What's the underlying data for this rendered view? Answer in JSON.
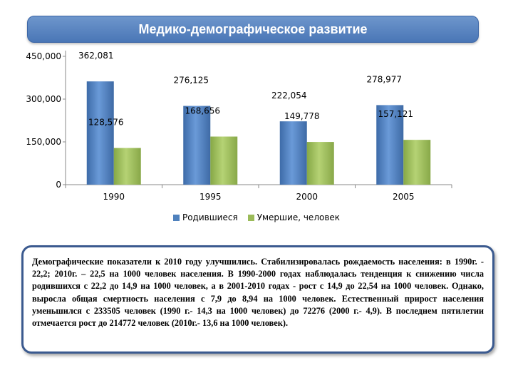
{
  "title": "Медико-демографическое развитие",
  "chart_data": {
    "type": "bar",
    "categories": [
      "1990",
      "1995",
      "2000",
      "2005"
    ],
    "series": [
      {
        "name": "Родившиеся",
        "values": [
          362081,
          276125,
          222054,
          278977
        ],
        "labels": [
          "362,081",
          "276,125",
          "222,054",
          "278,977"
        ],
        "color": "#4f81bd"
      },
      {
        "name": "Умершие, человек",
        "values": [
          128576,
          168656,
          149778,
          157121
        ],
        "labels": [
          "128,576",
          "168,656",
          "149,778",
          "157,121"
        ],
        "color": "#9bbb59"
      }
    ],
    "y_ticks": [
      "0",
      "150,000",
      "300,000",
      "450,000"
    ],
    "y_tick_values": [
      0,
      150000,
      300000,
      450000
    ],
    "ylim": [
      0,
      450000
    ],
    "legend_position": "bottom",
    "grid": false
  },
  "note": "Демографические показатели к 2010 году улучшились. Стабилизировалась рождаемость населения: в 1990г. - 22,2; 2010г. – 22,5 на 1000 человек населения. В 1990-2000 годах наблюдалась тенденция к снижению числа родившихся с 22,2 до 14,9 на 1000 человек, а в 2001-2010 годах - рост с 14,9 до 22,54 на 1000 человек. Однако, выросла общая смертность населения с 7,9 до 8,94 на 1000 человек. Естественный прирост населения уменьшился с 233505 человек (1990 г.- 14,3 на 1000 человек) до 72276 (2000 г.- 4,9). В последнем пятилетии отмечается рост до 214772 человек (2010г.- 13,6 на 1000 человек)."
}
